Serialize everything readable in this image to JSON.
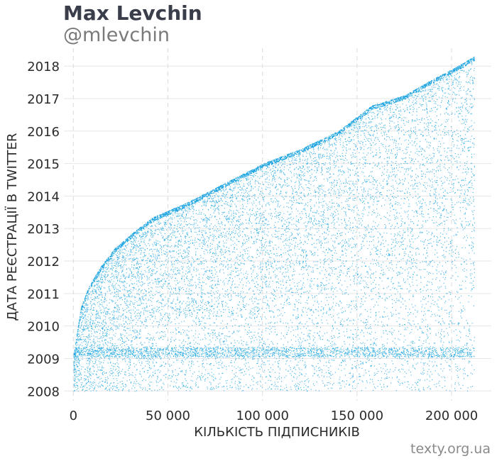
{
  "header": {
    "title": "Max Levchin",
    "subtitle": "@mlevchin"
  },
  "footer": {
    "source": "texty.org.ua"
  },
  "chart_data": {
    "type": "scatter",
    "xlabel": "КІЛЬКІСТЬ ПІДПИСНИКІВ",
    "ylabel": "ДАТА РЕЄСТРАЦІЇ В TWITTER",
    "xlim": [
      -5000,
      221000
    ],
    "ylim": [
      2007.7,
      2018.55
    ],
    "x_ticks": [
      0,
      50000,
      100000,
      150000,
      200000
    ],
    "x_tick_labels": [
      "0",
      "50 000",
      "100 000",
      "150 000",
      "200 000"
    ],
    "y_ticks": [
      2008,
      2009,
      2010,
      2011,
      2012,
      2013,
      2014,
      2015,
      2016,
      2017,
      2018
    ],
    "y_tick_labels": [
      "2008",
      "2009",
      "2010",
      "2011",
      "2012",
      "2013",
      "2014",
      "2015",
      "2016",
      "2017",
      "2018"
    ],
    "grid": true,
    "point_color": "#1aa3e0",
    "total_followers": 212000,
    "upper_envelope": {
      "x": [
        0,
        4000,
        8000,
        14000,
        22000,
        32000,
        42000,
        60000,
        80000,
        100000,
        120000,
        140000,
        158000,
        175000,
        190000,
        200000,
        212000
      ],
      "y": [
        2009.1,
        2010.6,
        2011.2,
        2011.8,
        2012.4,
        2012.9,
        2013.35,
        2013.8,
        2014.4,
        2015.0,
        2015.45,
        2016.0,
        2016.8,
        2017.1,
        2017.6,
        2017.9,
        2018.3
      ]
    },
    "dense_band": [
      2009.05,
      2009.35
    ]
  }
}
